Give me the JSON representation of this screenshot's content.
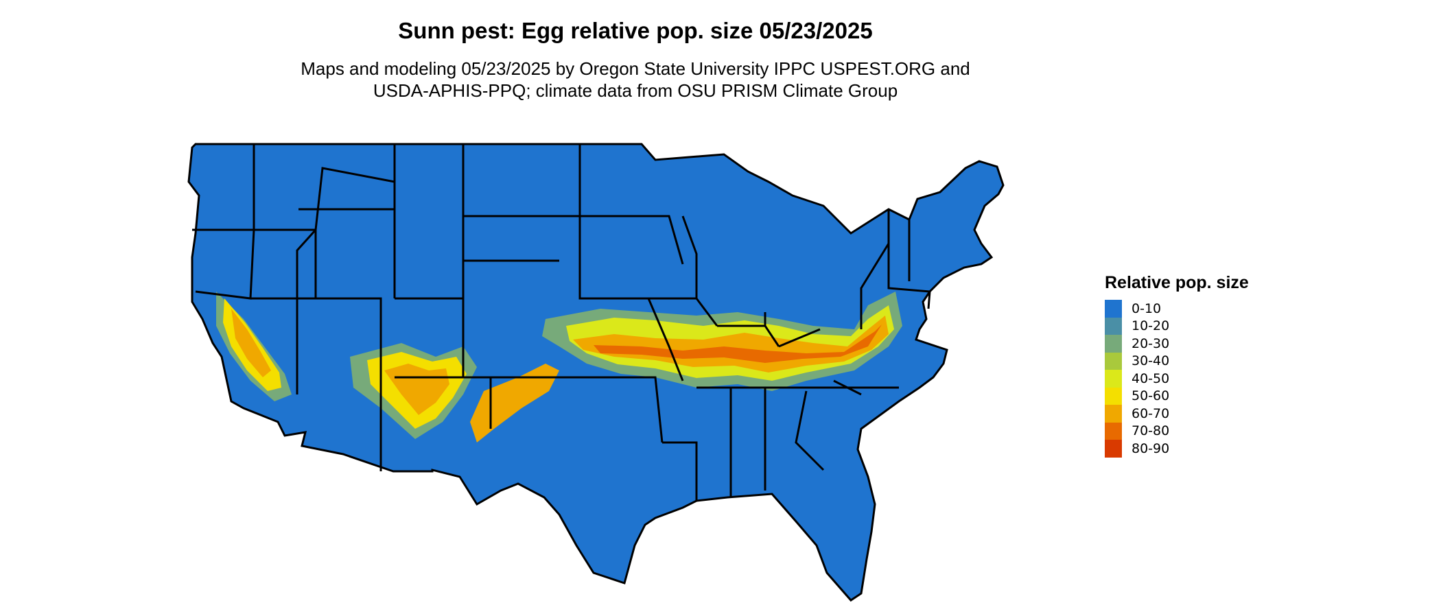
{
  "title": "Sunn pest: Egg relative pop. size 05/23/2025",
  "subtitle_line1": "Maps and modeling 05/23/2025 by Oregon State University IPPC USPEST.ORG and",
  "subtitle_line2": "USDA-APHIS-PPQ; climate data from OSU PRISM Climate Group",
  "map": {
    "region": "Contiguous United States",
    "base_color": "#1f74cf",
    "border_color": "#000000"
  },
  "legend": {
    "title": "Relative pop. size",
    "items": [
      {
        "label": "0-10",
        "color": "#1f74cf"
      },
      {
        "label": "10-20",
        "color": "#4a8fa6"
      },
      {
        "label": "20-30",
        "color": "#77aa7a"
      },
      {
        "label": "30-40",
        "color": "#a9c93c"
      },
      {
        "label": "40-50",
        "color": "#dbe81a"
      },
      {
        "label": "50-60",
        "color": "#f4df00"
      },
      {
        "label": "60-70",
        "color": "#f0a800"
      },
      {
        "label": "70-80",
        "color": "#e86a00"
      },
      {
        "label": "80-90",
        "color": "#d93a00"
      }
    ]
  }
}
